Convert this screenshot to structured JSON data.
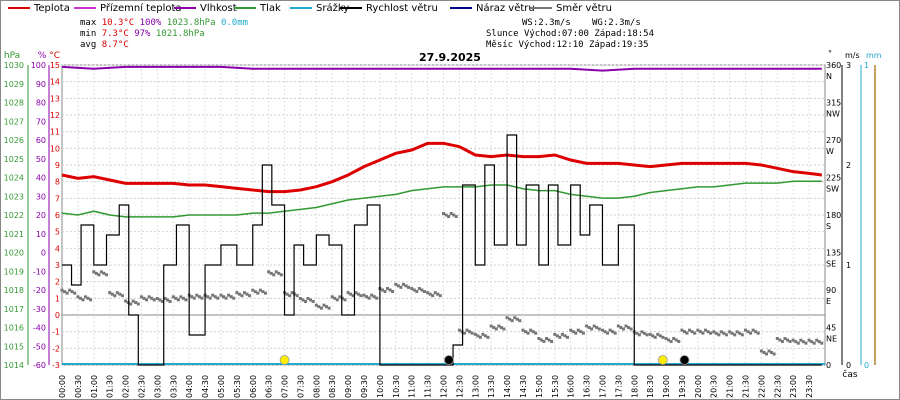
{
  "legend": [
    {
      "label": "Teplota",
      "color": "#dd0000"
    },
    {
      "label": "Přízemní teplota",
      "color": "#cc33cc"
    },
    {
      "label": "Vlhkost",
      "color": "#8800aa"
    },
    {
      "label": "Tlak",
      "color": "#339933"
    },
    {
      "label": "Srážky",
      "color": "#22aacc"
    },
    {
      "label": "Rychlost větru",
      "color": "#000000"
    },
    {
      "label": "Náraz větru",
      "color": "#000088"
    },
    {
      "label": "Směr větru",
      "color": "#777777"
    }
  ],
  "stats": {
    "max_label": "max",
    "max_temp": "10.3°C",
    "max_hum": "100%",
    "max_press": "1023.8hPa",
    "max_rain": "0.0mm",
    "min_label": "min",
    "min_temp": "7.3°C",
    "min_hum": "97%",
    "min_press": "1021.8hPa",
    "avg_label": "avg",
    "avg_temp": "8.7°C"
  },
  "wind_info": {
    "ws": "WS:2.3m/s",
    "wg": "WG:2.3m/s"
  },
  "sun": {
    "label": "Slunce",
    "rise": "Východ:07:00",
    "set": "Západ:18:54"
  },
  "moon": {
    "label": "Měsíc",
    "rise": "Východ:12:10",
    "set": "Západ:19:35"
  },
  "chart_data": {
    "type": "line",
    "title": "27.9.2025",
    "xlabel": "čas",
    "x_ticks": [
      "00:00",
      "00:30",
      "01:00",
      "01:30",
      "02:00",
      "02:30",
      "03:00",
      "03:30",
      "04:00",
      "04:30",
      "05:00",
      "05:30",
      "06:00",
      "06:30",
      "07:00",
      "07:30",
      "08:00",
      "08:30",
      "09:00",
      "09:30",
      "10:00",
      "10:30",
      "11:00",
      "11:30",
      "12:00",
      "12:30",
      "13:00",
      "13:30",
      "14:00",
      "14:30",
      "15:00",
      "15:30",
      "16:00",
      "16:30",
      "17:00",
      "17:30",
      "18:00",
      "18:30",
      "19:00",
      "19:30",
      "20:00",
      "20:30",
      "21:00",
      "21:30",
      "22:00",
      "22:30",
      "23:00",
      "23:30"
    ],
    "axes": {
      "pressure": {
        "label": "hPa",
        "range": [
          1014,
          1030
        ],
        "ticks": [
          "1030",
          "1029",
          "1028",
          "1027",
          "1026",
          "1025",
          "1024",
          "1023",
          "1022",
          "1021",
          "1020",
          "1019",
          "1018",
          "1017",
          "1016",
          "1015",
          "1014"
        ],
        "color": "#339933"
      },
      "humidity": {
        "label": "%",
        "range": [
          0,
          100
        ],
        "ticks": [
          "100",
          "90",
          "80",
          "70",
          "60",
          "50",
          "40",
          "30",
          "20",
          "10",
          "0",
          "-10",
          "-20",
          "-30",
          "-40",
          "-50",
          "-60"
        ],
        "color": "#8800aa"
      },
      "temperature": {
        "label": "°C",
        "range": [
          -3,
          15
        ],
        "ticks": [
          "15",
          "14",
          "13",
          "12",
          "11",
          "10",
          "9",
          "8",
          "7",
          "6",
          "5",
          "4",
          "3",
          "2",
          "1",
          "0",
          "-1",
          "-2",
          "-3"
        ],
        "color": "#dd0000"
      },
      "direction": {
        "label": "°",
        "range": [
          0,
          360
        ],
        "ticks": [
          {
            "v": 360,
            "t": "360",
            "d": "N"
          },
          {
            "v": 315,
            "t": "315",
            "d": "NW"
          },
          {
            "v": 270,
            "t": "270",
            "d": "W"
          },
          {
            "v": 225,
            "t": "225",
            "d": "SW"
          },
          {
            "v": 180,
            "t": "180",
            "d": "S"
          },
          {
            "v": 135,
            "t": "135",
            "d": "SE"
          },
          {
            "v": 90,
            "t": "90",
            "d": "E"
          },
          {
            "v": 45,
            "t": "45",
            "d": "NE"
          },
          {
            "v": 0,
            "t": "0",
            "d": ""
          }
        ]
      },
      "wind": {
        "label": "m/s",
        "range": [
          0,
          3
        ],
        "ticks": [
          "3",
          "2",
          "1",
          "0"
        ]
      },
      "rain": {
        "label": "mm",
        "range": [
          0,
          1
        ],
        "ticks": [
          "1",
          "0"
        ],
        "color": "#22aacc"
      }
    },
    "series": [
      {
        "name": "Teplota",
        "unit": "°C",
        "color": "#dd0000",
        "x": [
          0,
          0.5,
          1,
          1.5,
          2,
          2.5,
          3,
          3.5,
          4,
          4.5,
          5,
          5.5,
          6,
          6.5,
          7,
          7.5,
          8,
          8.5,
          9,
          9.5,
          10,
          10.5,
          11,
          11.5,
          12,
          12.5,
          13,
          13.5,
          14,
          14.5,
          15,
          15.5,
          16,
          16.5,
          17,
          17.5,
          18,
          18.5,
          19,
          19.5,
          20,
          20.5,
          21,
          21.5,
          22,
          22.5,
          23,
          23.5,
          23.9
        ],
        "y": [
          8.4,
          8.2,
          8.3,
          8.1,
          7.9,
          7.9,
          7.9,
          7.9,
          7.8,
          7.8,
          7.7,
          7.6,
          7.5,
          7.4,
          7.4,
          7.5,
          7.7,
          8.0,
          8.4,
          8.9,
          9.3,
          9.7,
          9.9,
          10.3,
          10.3,
          10.1,
          9.6,
          9.5,
          9.6,
          9.5,
          9.5,
          9.6,
          9.3,
          9.1,
          9.1,
          9.1,
          9.0,
          8.9,
          9.0,
          9.1,
          9.1,
          9.1,
          9.1,
          9.1,
          9.0,
          8.8,
          8.6,
          8.5,
          8.4
        ]
      },
      {
        "name": "Vlhkost",
        "unit": "%",
        "color": "#8800aa",
        "x": [
          0,
          1,
          2,
          3,
          4,
          5,
          6,
          7,
          8,
          9,
          10,
          11,
          12,
          13,
          14,
          15,
          16,
          17,
          18,
          19,
          20,
          21,
          22,
          23,
          23.9
        ],
        "y": [
          99,
          98,
          99,
          99,
          99,
          99,
          98,
          98,
          98,
          98,
          98,
          98,
          98,
          98,
          98,
          98,
          98,
          97,
          98,
          98,
          98,
          98,
          98,
          98,
          98
        ]
      },
      {
        "name": "Tlak",
        "unit": "hPa",
        "color": "#339933",
        "x": [
          0,
          0.5,
          1,
          1.5,
          2,
          2.5,
          3,
          3.5,
          4,
          4.5,
          5,
          5.5,
          6,
          6.5,
          7,
          7.5,
          8,
          8.5,
          9,
          9.5,
          10,
          10.5,
          11,
          11.5,
          12,
          12.5,
          13,
          13.5,
          14,
          14.5,
          15,
          15.5,
          16,
          16.5,
          17,
          17.5,
          18,
          18.5,
          19,
          19.5,
          20,
          20.5,
          21,
          21.5,
          22,
          22.5,
          23,
          23.5,
          23.9
        ],
        "y": [
          1022.1,
          1022.0,
          1022.2,
          1022.0,
          1021.9,
          1021.9,
          1021.9,
          1021.9,
          1022.0,
          1022.0,
          1022.0,
          1022.0,
          1022.1,
          1022.1,
          1022.2,
          1022.3,
          1022.4,
          1022.6,
          1022.8,
          1022.9,
          1023.0,
          1023.1,
          1023.3,
          1023.4,
          1023.5,
          1023.5,
          1023.5,
          1023.6,
          1023.6,
          1023.4,
          1023.3,
          1023.3,
          1023.1,
          1023.0,
          1022.9,
          1022.9,
          1023.0,
          1023.2,
          1023.3,
          1023.4,
          1023.5,
          1023.5,
          1023.6,
          1023.7,
          1023.7,
          1023.7,
          1023.8,
          1023.8,
          1023.8
        ]
      },
      {
        "name": "Rychlost větru",
        "unit": "m/s",
        "color": "#000000",
        "x": [
          0,
          0.3,
          0.6,
          1,
          1.4,
          1.8,
          2.1,
          2.4,
          2.8,
          3.2,
          3.6,
          4,
          4.5,
          5,
          5.5,
          6,
          6.3,
          6.6,
          7,
          7.3,
          7.6,
          8,
          8.4,
          8.8,
          9.2,
          9.6,
          10,
          10.5,
          11,
          11.5,
          12,
          12.3,
          12.6,
          13,
          13.3,
          13.6,
          14,
          14.3,
          14.6,
          15,
          15.3,
          15.6,
          16,
          16.3,
          16.6,
          17,
          17.5,
          18,
          18.5,
          19,
          19.5,
          20,
          20.5,
          21,
          22,
          23,
          23.9
        ],
        "y": [
          1,
          0.8,
          1.4,
          1,
          1.3,
          1.6,
          0.5,
          0,
          0,
          1,
          1.4,
          0.3,
          1,
          1.2,
          1,
          1.4,
          2,
          1.6,
          0.5,
          1.2,
          1,
          1.3,
          1.2,
          0.5,
          1.4,
          1.6,
          0,
          0,
          0,
          0,
          0,
          0.2,
          1.8,
          1,
          2,
          1.2,
          2.3,
          1.2,
          1.8,
          1,
          1.8,
          1.2,
          1.8,
          1.3,
          1.6,
          1,
          1.4,
          0,
          0,
          0,
          0,
          0,
          0,
          0,
          0,
          0,
          0
        ]
      },
      {
        "name": "Směr větru",
        "unit": "°",
        "color": "#777777",
        "x": [
          0,
          0.5,
          1,
          1.5,
          2,
          2.5,
          3,
          3.5,
          4,
          4.5,
          5,
          5.5,
          6,
          6.5,
          7,
          7.5,
          8,
          8.5,
          9,
          9.5,
          10,
          10.5,
          11,
          11.5,
          12,
          12.5,
          13,
          13.5,
          14,
          14.5,
          15,
          15.5,
          16,
          16.5,
          17,
          17.5,
          18,
          18.5,
          19,
          19.5,
          20,
          20.5,
          21,
          21.5,
          22,
          22.5,
          23,
          23.5
        ],
        "y": [
          88,
          80,
          110,
          85,
          75,
          80,
          78,
          80,
          82,
          82,
          82,
          85,
          88,
          110,
          85,
          78,
          70,
          80,
          85,
          82,
          90,
          95,
          90,
          85,
          180,
          40,
          35,
          45,
          55,
          40,
          30,
          35,
          40,
          45,
          40,
          45,
          38,
          35,
          30,
          40,
          40,
          38,
          38,
          40,
          15,
          30,
          28,
          28
        ]
      }
    ],
    "markers": [
      {
        "type": "sunrise",
        "x": 7.0,
        "color": "#ffee00"
      },
      {
        "type": "moonrise",
        "x": 12.17,
        "color": "#000000"
      },
      {
        "type": "sunset",
        "x": 18.9,
        "color": "#ffee00"
      },
      {
        "type": "moonset",
        "x": 19.58,
        "color": "#000000"
      }
    ],
    "grid": true
  }
}
